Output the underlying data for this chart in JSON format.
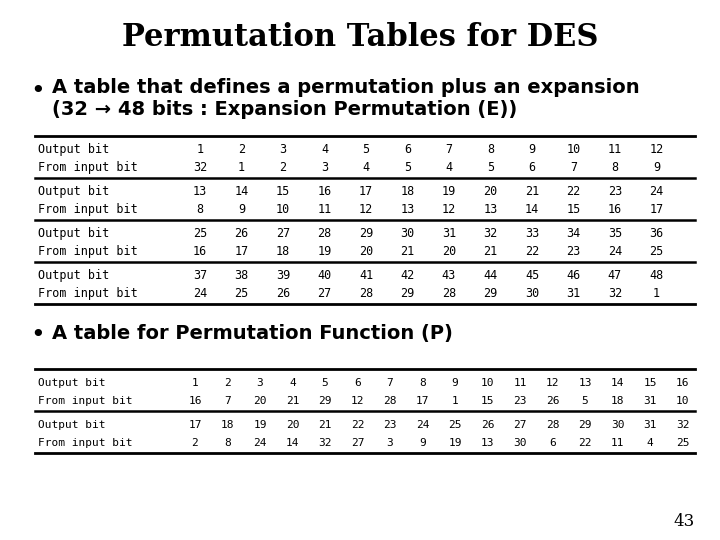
{
  "title": "Permutation Tables for DES",
  "bg_color": "#ffffff",
  "bullet1_line1": "A table that defines a permutation plus an expansion",
  "bullet1_line2": "(32 → 48 bits : Expansion Permutation (E))",
  "bullet2": "A table for Permutation Function (P)",
  "page_num": "43",
  "E_table": {
    "rows": [
      [
        "Output bit",
        "1",
        "2",
        "3",
        "4",
        "5",
        "6",
        "7",
        "8",
        "9",
        "10",
        "11",
        "12"
      ],
      [
        "From input bit",
        "32",
        "1",
        "2",
        "3",
        "4",
        "5",
        "4",
        "5",
        "6",
        "7",
        "8",
        "9"
      ],
      [
        "Output bit",
        "13",
        "14",
        "15",
        "16",
        "17",
        "18",
        "19",
        "20",
        "21",
        "22",
        "23",
        "24"
      ],
      [
        "From input bit",
        "8",
        "9",
        "10",
        "11",
        "12",
        "13",
        "12",
        "13",
        "14",
        "15",
        "16",
        "17"
      ],
      [
        "Output bit",
        "25",
        "26",
        "27",
        "28",
        "29",
        "30",
        "31",
        "32",
        "33",
        "34",
        "35",
        "36"
      ],
      [
        "From input bit",
        "16",
        "17",
        "18",
        "19",
        "20",
        "21",
        "20",
        "21",
        "22",
        "23",
        "24",
        "25"
      ],
      [
        "Output bit",
        "37",
        "38",
        "39",
        "40",
        "41",
        "42",
        "43",
        "44",
        "45",
        "46",
        "47",
        "48"
      ],
      [
        "From input bit",
        "24",
        "25",
        "26",
        "27",
        "28",
        "29",
        "28",
        "29",
        "30",
        "31",
        "32",
        "1"
      ]
    ]
  },
  "P_table": {
    "rows": [
      [
        "Output bit",
        "1",
        "2",
        "3",
        "4",
        "5",
        "6",
        "7",
        "8",
        "9",
        "10",
        "11",
        "12",
        "13",
        "14",
        "15",
        "16"
      ],
      [
        "From input bit",
        "16",
        "7",
        "20",
        "21",
        "29",
        "12",
        "28",
        "17",
        "1",
        "15",
        "23",
        "26",
        "5",
        "18",
        "31",
        "10"
      ],
      [
        "Output bit",
        "17",
        "18",
        "19",
        "20",
        "21",
        "22",
        "23",
        "24",
        "25",
        "26",
        "27",
        "28",
        "29",
        "30",
        "31",
        "32"
      ],
      [
        "From input bit",
        "2",
        "8",
        "24",
        "14",
        "32",
        "27",
        "3",
        "9",
        "19",
        "13",
        "30",
        "6",
        "22",
        "11",
        "4",
        "25"
      ]
    ]
  }
}
